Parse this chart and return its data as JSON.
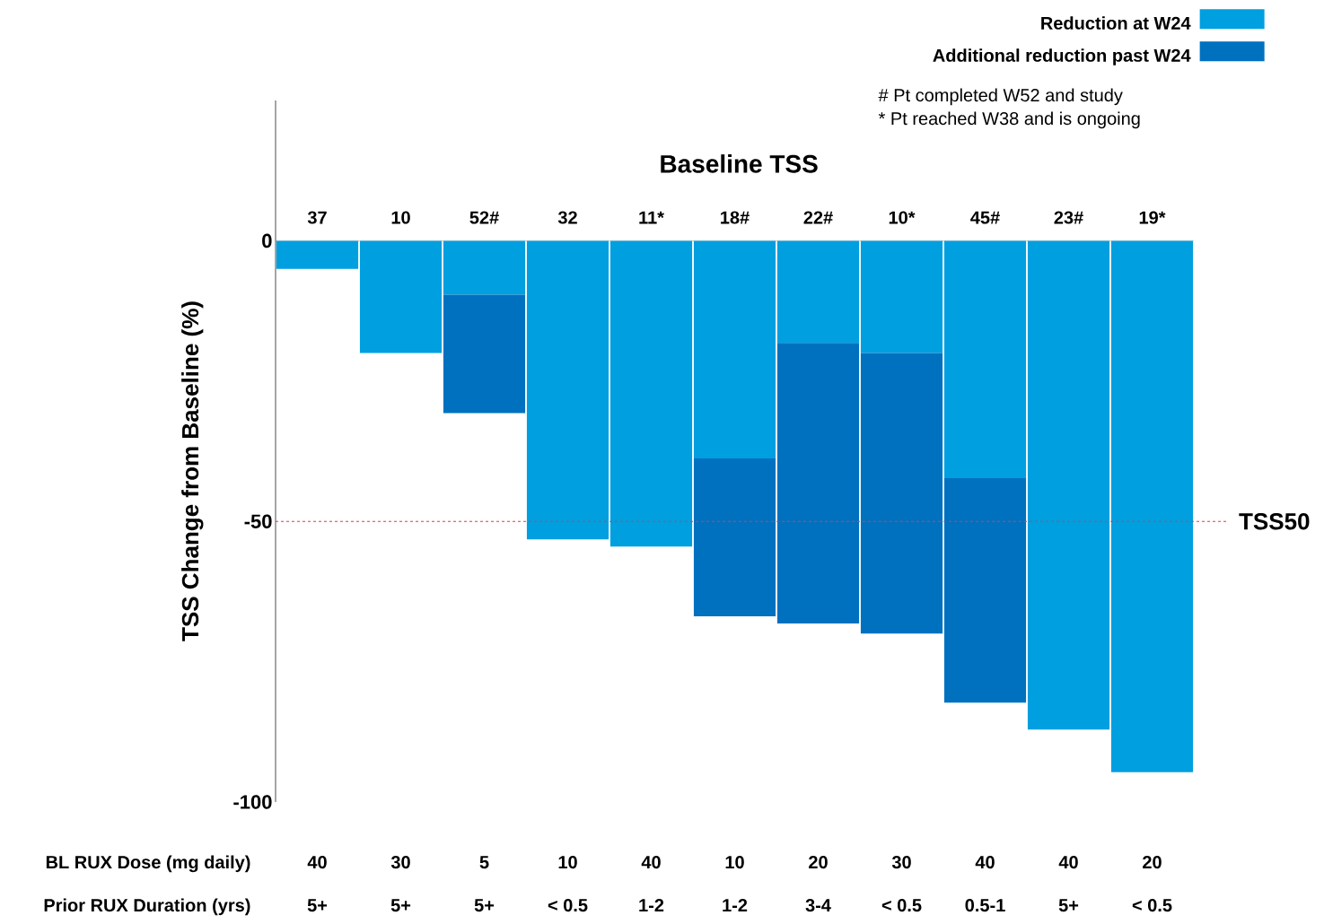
{
  "chart_data": {
    "type": "bar",
    "stacked": true,
    "xlabel": "Baseline TSS",
    "ylabel": "TSS Change from Baseline (%)",
    "categories": [
      "37",
      "10",
      "52#",
      "32",
      "11*",
      "18#",
      "22#",
      "10*",
      "45#",
      "23#",
      "19*"
    ],
    "series": [
      {
        "name": "Reduction at W24",
        "color": "#009fdf",
        "values": [
          -5,
          -20,
          -9.6,
          -53.2,
          -54.5,
          -38.8,
          -18.2,
          -20,
          -42.3,
          -87.1,
          -94.7
        ]
      },
      {
        "name": "Additional reduction past W24",
        "color": "#0071bf",
        "values": [
          null,
          null,
          -21.1,
          null,
          null,
          -28.1,
          -50,
          -50,
          -40,
          null,
          null
        ]
      }
    ],
    "ylim": [
      -100,
      25
    ],
    "yticks": [
      0,
      -50,
      -100
    ],
    "legend": "top right",
    "ref_lines": [
      {
        "axis": "y",
        "value": -50,
        "label": "TSS50",
        "color": "#e8383d",
        "line_style": "dashed"
      }
    ],
    "annotations": [
      "# Pt completed W52 and study",
      "* Pt reached W38 and is ongoing",
      "BL RUX Dose (mg daily)",
      "40",
      "30",
      "5",
      "10",
      "40",
      "10",
      "20",
      "30",
      "40",
      "40",
      "20",
      "Prior RUX Duration (yrs)",
      "5+",
      "5+",
      "5+",
      "< 0.5",
      "1-2",
      "1-2",
      "3-4",
      "< 0.5",
      "0.5-1",
      "5+",
      "< 0.5"
    ]
  }
}
